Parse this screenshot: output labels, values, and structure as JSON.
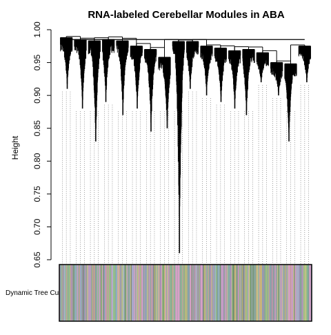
{
  "chart_data": {
    "type": "dendrogram",
    "title": "RNA-labeled Cerebellar Modules in ABA",
    "xlabel": "",
    "ylabel": "Height",
    "ylim": [
      0.65,
      1.0
    ],
    "yticks": [
      "0.65",
      "0.70",
      "0.75",
      "0.80",
      "0.85",
      "0.90",
      "0.95",
      "1.00"
    ],
    "yticks_values": [
      0.65,
      0.7,
      0.75,
      0.8,
      0.85,
      0.9,
      0.95,
      1.0
    ],
    "root_height": 0.985,
    "clusters": [
      {
        "merge_height": 0.988,
        "min_height": 0.91
      },
      {
        "merge_height": 0.985,
        "min_height": 0.88
      },
      {
        "merge_height": 0.983,
        "min_height": 0.83
      },
      {
        "merge_height": 0.985,
        "min_height": 0.89
      },
      {
        "merge_height": 0.983,
        "min_height": 0.87
      },
      {
        "merge_height": 0.975,
        "min_height": 0.88
      },
      {
        "merge_height": 0.97,
        "min_height": 0.845
      },
      {
        "merge_height": 0.958,
        "min_height": 0.85
      },
      {
        "merge_height": 0.982,
        "min_height": 0.66
      },
      {
        "merge_height": 0.982,
        "min_height": 0.91
      },
      {
        "merge_height": 0.975,
        "min_height": 0.9
      },
      {
        "merge_height": 0.972,
        "min_height": 0.89
      },
      {
        "merge_height": 0.968,
        "min_height": 0.88
      },
      {
        "merge_height": 0.97,
        "min_height": 0.87
      },
      {
        "merge_height": 0.965,
        "min_height": 0.92
      },
      {
        "merge_height": 0.95,
        "min_height": 0.9
      },
      {
        "merge_height": 0.948,
        "min_height": 0.83
      },
      {
        "merge_height": 0.975,
        "min_height": 0.92
      }
    ],
    "band": {
      "label": "Dynamic Tree Cut",
      "palette": [
        "#8fbc8f",
        "#d8a0c8",
        "#9ab6d2",
        "#c9b37a",
        "#7fa39a",
        "#b79bc4",
        "#6f8f6f",
        "#a58fb0",
        "#d2c08b",
        "#87a0b8",
        "#c49aa4",
        "#9fbf80",
        "#bca0b6",
        "#8fa79b"
      ]
    }
  }
}
